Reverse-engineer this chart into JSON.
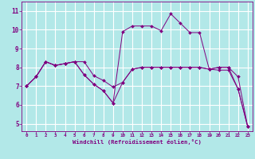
{
  "xlabel": "Windchill (Refroidissement éolien,°C)",
  "background_color": "#b2e8e8",
  "line_color": "#800080",
  "grid_color": "#ffffff",
  "x_ticks": [
    0,
    1,
    2,
    3,
    4,
    5,
    6,
    7,
    8,
    9,
    10,
    11,
    12,
    13,
    14,
    15,
    16,
    17,
    18,
    19,
    20,
    21,
    22,
    23
  ],
  "y_ticks": [
    5,
    6,
    7,
    8,
    9,
    10,
    11
  ],
  "xlim": [
    -0.5,
    23.5
  ],
  "ylim": [
    4.6,
    11.5
  ],
  "series": [
    [
      7.0,
      7.5,
      8.3,
      8.1,
      8.2,
      8.3,
      8.3,
      7.55,
      7.3,
      6.95,
      7.2,
      7.9,
      8.0,
      8.0,
      8.0,
      8.0,
      8.0,
      8.0,
      8.0,
      7.9,
      8.0,
      8.0,
      7.5,
      4.85
    ],
    [
      7.0,
      7.5,
      8.3,
      8.1,
      8.2,
      8.3,
      7.6,
      7.1,
      6.75,
      6.1,
      9.9,
      10.2,
      10.2,
      10.2,
      9.95,
      10.85,
      10.35,
      9.85,
      9.85,
      7.9,
      7.85,
      7.85,
      6.85,
      4.85
    ],
    [
      7.0,
      7.5,
      8.3,
      8.1,
      8.2,
      8.3,
      7.6,
      7.1,
      6.75,
      6.1,
      7.2,
      7.9,
      8.0,
      8.0,
      8.0,
      8.0,
      8.0,
      8.0,
      8.0,
      7.9,
      8.0,
      8.0,
      6.85,
      4.85
    ]
  ]
}
